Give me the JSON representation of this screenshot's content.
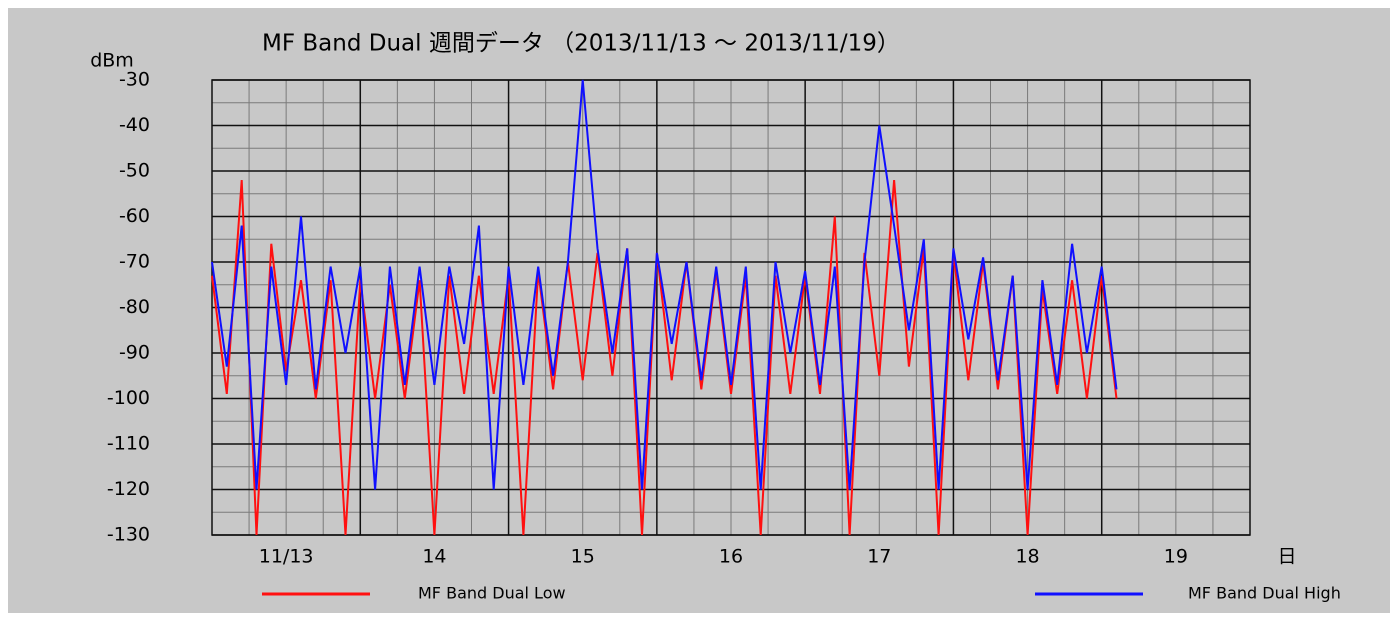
{
  "chart_data": {
    "type": "line",
    "title": "MF Band Dual 週間データ （2013/11/13 ～ 2013/11/19）",
    "y_label": "dBm",
    "x_label": "日",
    "xlim": [
      0,
      7
    ],
    "xticks": [
      {
        "value": 0.5,
        "label": "11/13"
      },
      {
        "value": 1.5,
        "label": "14"
      },
      {
        "value": 2.5,
        "label": "15"
      },
      {
        "value": 3.5,
        "label": "16"
      },
      {
        "value": 4.5,
        "label": "17"
      },
      {
        "value": 5.5,
        "label": "18"
      },
      {
        "value": 6.5,
        "label": "19"
      }
    ],
    "xgrid_major": [
      1,
      2,
      3,
      4,
      5,
      6
    ],
    "xgrid_minor": [
      0.25,
      0.5,
      0.75,
      1.25,
      1.5,
      1.75,
      2.25,
      2.5,
      2.75,
      3.25,
      3.5,
      3.75,
      4.25,
      4.5,
      4.75,
      5.25,
      5.5,
      5.75,
      6.25,
      6.5,
      6.75
    ],
    "ylim": [
      -130,
      -30
    ],
    "yticks": [
      -130,
      -120,
      -110,
      -100,
      -90,
      -80,
      -70,
      -60,
      -50,
      -40,
      -30
    ],
    "ygrid_minor": [
      -125,
      -115,
      -105,
      -95,
      -85,
      -75,
      -65,
      -55,
      -45,
      -35
    ],
    "grid": true,
    "x": [
      0,
      0.1,
      0.2,
      0.3,
      0.4,
      0.5,
      0.6,
      0.7,
      0.8,
      0.9,
      1,
      1.1,
      1.2,
      1.3,
      1.4,
      1.5,
      1.6,
      1.7,
      1.8,
      1.9,
      2,
      2.1,
      2.2,
      2.3,
      2.4,
      2.5,
      2.6,
      2.7,
      2.8,
      2.9,
      3,
      3.1,
      3.2,
      3.3,
      3.4,
      3.5,
      3.6,
      3.7,
      3.8,
      3.9,
      4,
      4.1,
      4.2,
      4.3,
      4.4,
      4.5,
      4.6,
      4.7,
      4.8,
      4.9,
      5,
      5.1,
      5.2,
      5.3,
      5.4,
      5.5,
      5.6,
      5.7,
      5.8,
      5.9,
      6,
      6.1
    ],
    "series": [
      {
        "name": "MF Band Dual Low",
        "color": "#ff1010",
        "values": [
          -73,
          -99,
          -52,
          -130,
          -66,
          -94,
          -74,
          -100,
          -74,
          -130,
          -74,
          -100,
          -75,
          -100,
          -74,
          -130,
          -73,
          -99,
          -73,
          -99,
          -73,
          -130,
          -72,
          -98,
          -70,
          -96,
          -68,
          -95,
          -67,
          -130,
          -68,
          -96,
          -70,
          -98,
          -72,
          -99,
          -73,
          -130,
          -73,
          -99,
          -73,
          -99,
          -60,
          -130,
          -68,
          -95,
          -52,
          -93,
          -67,
          -130,
          -68,
          -96,
          -70,
          -98,
          -73,
          -130,
          -76,
          -99,
          -74,
          -100,
          -73,
          -100
        ]
      },
      {
        "name": "MF Band Dual High",
        "color": "#1010ff",
        "values": [
          -70,
          -93,
          -62,
          -120,
          -71,
          -97,
          -60,
          -98,
          -71,
          -90,
          -71,
          -120,
          -71,
          -97,
          -71,
          -97,
          -71,
          -88,
          -62,
          -120,
          -71,
          -97,
          -71,
          -95,
          -70,
          -30,
          -67,
          -90,
          -67,
          -120,
          -68,
          -88,
          -70,
          -96,
          -71,
          -97,
          -71,
          -120,
          -70,
          -90,
          -72,
          -97,
          -71,
          -120,
          -70,
          -40,
          -62,
          -85,
          -65,
          -120,
          -67,
          -87,
          -69,
          -96,
          -73,
          -120,
          -74,
          -97,
          -66,
          -90,
          -71,
          -98
        ]
      }
    ]
  }
}
